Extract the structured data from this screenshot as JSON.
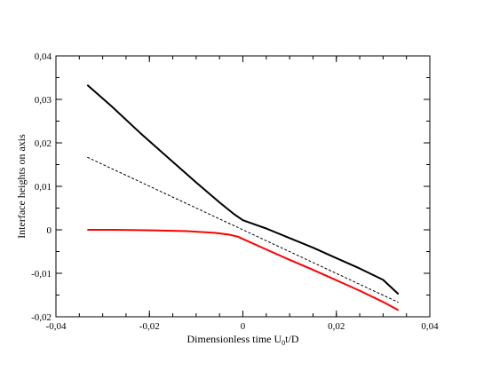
{
  "chart_data": {
    "type": "line",
    "title": "",
    "xlabel": {
      "text": "Dimensionless time U",
      "sub": "0",
      "suffix": "t/D"
    },
    "ylabel": "Interface heights on axis",
    "xlim": [
      -0.04,
      0.04
    ],
    "ylim": [
      -0.02,
      0.04
    ],
    "grid": false,
    "x_ticks": [
      {
        "value": -0.04,
        "label": "-0,04"
      },
      {
        "value": -0.02,
        "label": "-0,02"
      },
      {
        "value": 0,
        "label": "0"
      },
      {
        "value": 0.02,
        "label": "0,02"
      },
      {
        "value": 0.04,
        "label": "0,04"
      }
    ],
    "y_ticks": [
      {
        "value": -0.02,
        "label": "-0,02"
      },
      {
        "value": -0.01,
        "label": "-0,01"
      },
      {
        "value": 0,
        "label": "0"
      },
      {
        "value": 0.01,
        "label": "0,01"
      },
      {
        "value": 0.02,
        "label": "0,02"
      },
      {
        "value": 0.03,
        "label": "0,03"
      },
      {
        "value": 0.04,
        "label": "0,04"
      }
    ],
    "x_minor_step": 0.005,
    "y_minor_step": 0.005,
    "series": [
      {
        "color": "#000000",
        "style": "solid",
        "x": [
          -0.0333,
          -0.028,
          -0.022,
          -0.016,
          -0.01,
          -0.005,
          -0.002,
          0,
          0.005,
          0.01,
          0.015,
          0.02,
          0.025,
          0.03,
          0.0333
        ],
        "y": [
          0.0333,
          0.0283,
          0.0223,
          0.0166,
          0.0109,
          0.0063,
          0.0037,
          0.0022,
          0.0003,
          -0.0019,
          -0.0041,
          -0.0065,
          -0.0089,
          -0.0115,
          -0.0148
        ]
      },
      {
        "color": "#000000",
        "style": "dashed",
        "x": [
          -0.0333,
          0.0333
        ],
        "y": [
          0.0167,
          -0.0167
        ]
      },
      {
        "color": "#ff0000",
        "style": "solid",
        "x": [
          -0.0333,
          -0.028,
          -0.02,
          -0.012,
          -0.006,
          -0.003,
          -0.001,
          0,
          0.005,
          0.01,
          0.015,
          0.02,
          0.025,
          0.03,
          0.0333
        ],
        "y": [
          0.0,
          0.0,
          -0.0001,
          -0.0003,
          -0.0007,
          -0.0011,
          -0.0016,
          -0.0021,
          -0.0045,
          -0.0069,
          -0.0092,
          -0.0116,
          -0.014,
          -0.0166,
          -0.0185
        ]
      }
    ]
  }
}
